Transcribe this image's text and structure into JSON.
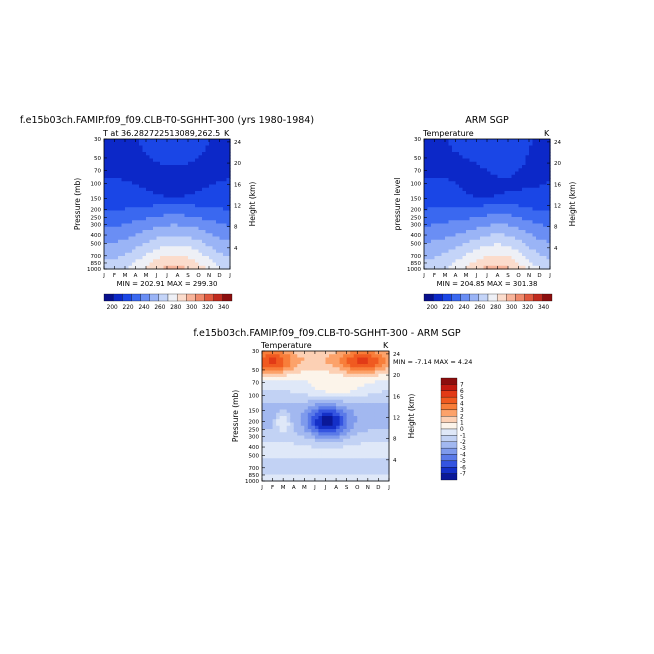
{
  "figure": {
    "left_title": "f.e15b03ch.FAMIP.f09_f09.CLB-T0-SGHHT-300 (yrs 1980-1984)",
    "right_title": "ARM SGP",
    "bottom_title": "f.e15b03ch.FAMIP.f09_f09.CLB-T0-SGHHT-300 - ARM SGP"
  },
  "chart_data": [
    {
      "type": "heatmap",
      "id": "model",
      "subtitle_left": "T at 36.282722513089,262.5",
      "subtitle_right": "K",
      "ylabel": "Pressure (mb)",
      "ylabel_right": "Height (km)",
      "minmax": "MIN = 202.91  MAX = 299.30",
      "min": 202.91,
      "max": 299.3,
      "x_ticks": [
        "J",
        "F",
        "M",
        "A",
        "M",
        "J",
        "J",
        "A",
        "S",
        "O",
        "N",
        "D",
        "J"
      ],
      "pressure_ticks": [
        "30",
        "50",
        "70",
        "100",
        "150",
        "200",
        "250",
        "300",
        "400",
        "500",
        "700",
        "850",
        "1000"
      ],
      "pressure_values": [
        30,
        50,
        70,
        100,
        150,
        200,
        250,
        300,
        400,
        500,
        700,
        850,
        1000
      ],
      "height_ticks": [
        "24",
        "20",
        "16",
        "12",
        "8",
        "4"
      ],
      "height_values": [
        24,
        20,
        16,
        12,
        8,
        4
      ],
      "colorbar_labels": [
        "200",
        "220",
        "240",
        "260",
        "280",
        "300",
        "320",
        "340"
      ],
      "colorbar_levels": [
        200,
        220,
        240,
        260,
        280,
        300,
        320,
        340
      ]
    },
    {
      "type": "heatmap",
      "id": "obs",
      "subtitle_left": "Temperature",
      "subtitle_right": "K",
      "ylabel": "pressure level",
      "ylabel_right": "Height (km)",
      "minmax": "MIN = 204.85  MAX = 301.38",
      "min": 204.85,
      "max": 301.38,
      "x_ticks": [
        "J",
        "F",
        "M",
        "A",
        "M",
        "J",
        "J",
        "A",
        "S",
        "O",
        "N",
        "D",
        "J"
      ],
      "pressure_ticks": [
        "30",
        "50",
        "70",
        "100",
        "150",
        "200",
        "250",
        "300",
        "400",
        "500",
        "700",
        "850",
        "1000"
      ],
      "pressure_values": [
        30,
        50,
        70,
        100,
        150,
        200,
        250,
        300,
        400,
        500,
        700,
        850,
        1000
      ],
      "height_ticks": [
        "24",
        "20",
        "16",
        "12",
        "8",
        "4"
      ],
      "height_values": [
        24,
        20,
        16,
        12,
        8,
        4
      ],
      "colorbar_labels": [
        "200",
        "220",
        "240",
        "260",
        "280",
        "300",
        "320",
        "340"
      ],
      "colorbar_levels": [
        200,
        220,
        240,
        260,
        280,
        300,
        320,
        340
      ]
    },
    {
      "type": "heatmap",
      "id": "diff",
      "subtitle_left": "Temperature",
      "subtitle_right": "K",
      "ylabel": "Pressure (mb)",
      "ylabel_right": "Height (km)",
      "minmax": "MIN = -7.14  MAX =  4.24",
      "min": -7.14,
      "max": 4.24,
      "x_ticks": [
        "J",
        "F",
        "M",
        "A",
        "M",
        "J",
        "J",
        "A",
        "S",
        "O",
        "N",
        "D",
        "J"
      ],
      "pressure_ticks": [
        "30",
        "50",
        "70",
        "100",
        "150",
        "200",
        "250",
        "300",
        "400",
        "500",
        "700",
        "850",
        "1000"
      ],
      "pressure_values": [
        30,
        50,
        70,
        100,
        150,
        200,
        250,
        300,
        400,
        500,
        700,
        850,
        1000
      ],
      "height_ticks": [
        "24",
        "20",
        "16",
        "12",
        "8",
        "4"
      ],
      "height_values": [
        24,
        20,
        16,
        12,
        8,
        4
      ],
      "colorbar_labels": [
        "7",
        "6",
        "5",
        "4",
        "3",
        "2",
        "1",
        "0",
        "-1",
        "-2",
        "-3",
        "-4",
        "-5",
        "-6",
        "-7"
      ],
      "colorbar_levels": [
        7,
        6,
        5,
        4,
        3,
        2,
        1,
        0,
        -1,
        -2,
        -3,
        -4,
        -5,
        -6,
        -7
      ]
    }
  ],
  "colors": {
    "seq_scale": [
      "#08108c",
      "#0c28c8",
      "#1a46e6",
      "#3a68f0",
      "#6a8ef4",
      "#9ab4f6",
      "#c4d4f8",
      "#eef0f6",
      "#fbdccc",
      "#f8b49a",
      "#f08a6c",
      "#e0583e",
      "#c02a1e",
      "#8c0e0e"
    ],
    "div_scale": [
      "#8c0e0e",
      "#c21a10",
      "#e23a16",
      "#f05a20",
      "#f87e3a",
      "#fca26a",
      "#fcd0b4",
      "#fcf4ea",
      "#dfe8f8",
      "#c2d2f4",
      "#a2b8f0",
      "#7e9aec",
      "#5a7ae8",
      "#3454e0",
      "#1430c8",
      "#0a1898"
    ]
  }
}
